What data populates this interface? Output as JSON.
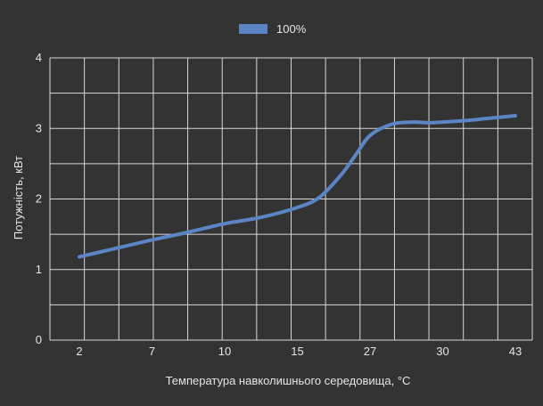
{
  "chart_data": {
    "type": "line",
    "title": "",
    "xlabel": "Температура навколишнього середовища, °C",
    "ylabel": "Потужність, кВт",
    "categories": [
      "2",
      "7",
      "10",
      "15",
      "27",
      "30",
      "43"
    ],
    "ylim": [
      0,
      4
    ],
    "yticks": [
      0,
      1,
      2,
      3,
      4
    ],
    "grid": true,
    "legend_position": "top-center",
    "series": [
      {
        "name": "100%",
        "color": "#5b85c4",
        "x": [
          0,
          0.5,
          1,
          1.5,
          2,
          2.5,
          3,
          3.3,
          3.6,
          3.8,
          4,
          4.3,
          4.6,
          4.8,
          5,
          5.3,
          5.6,
          6
        ],
        "values": [
          1.18,
          1.3,
          1.42,
          1.53,
          1.65,
          1.74,
          1.88,
          2.02,
          2.34,
          2.62,
          2.9,
          3.06,
          3.09,
          3.08,
          3.09,
          3.11,
          3.14,
          3.18
        ]
      }
    ]
  }
}
